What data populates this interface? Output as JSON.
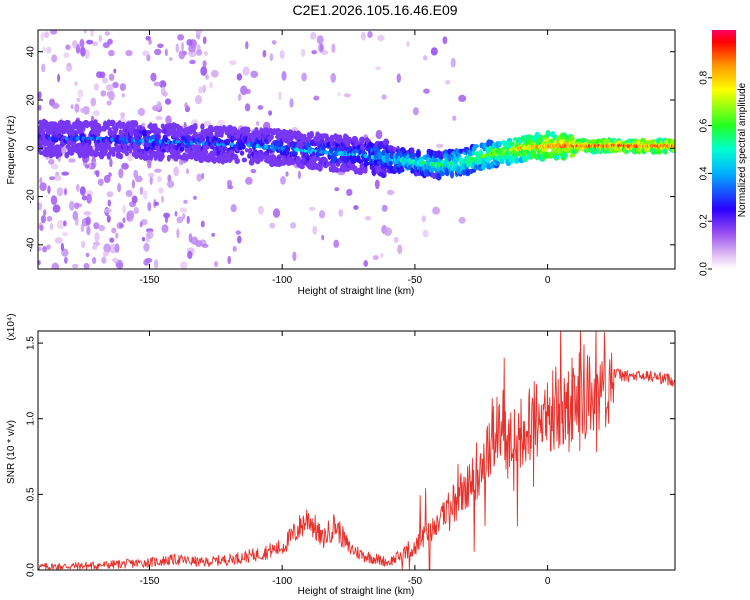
{
  "title": "C2E1.2026.105.16.46.E09",
  "chart_data": [
    {
      "type": "heatmap",
      "title": "C2E1.2026.105.16.46.E09",
      "xlabel": "Height of straight line (km)",
      "ylabel": "Frequency (Hz)",
      "xlim": [
        -192,
        48
      ],
      "ylim": [
        -50,
        49
      ],
      "xticks": [
        "-150",
        "-100",
        "-50",
        "0"
      ],
      "yticks": [
        "40",
        "20",
        "0",
        "-20",
        "-40"
      ],
      "colorbar_label": "Normalized spectral amplitude",
      "colorbar_ticks": [
        "0.0",
        "0.2",
        "0.4",
        "0.6",
        "0.8"
      ],
      "colorbar_range": [
        0,
        1
      ],
      "ridge": {
        "x": [
          -190,
          -170,
          -150,
          -130,
          -110,
          -90,
          -70,
          -55,
          -40,
          -30,
          -20,
          -10,
          0,
          10,
          20,
          30,
          48
        ],
        "freq": [
          4,
          4,
          3,
          2,
          1,
          -1,
          -3,
          -5,
          -7,
          -5,
          -2,
          0,
          1,
          1,
          1,
          1,
          1
        ],
        "amplitude": [
          0.2,
          0.25,
          0.3,
          0.28,
          0.3,
          0.32,
          0.35,
          0.45,
          0.5,
          0.55,
          0.6,
          0.7,
          0.75,
          0.8,
          0.8,
          0.8,
          0.8
        ]
      }
    },
    {
      "type": "line",
      "xlabel": "Height of straight line (km)",
      "ylabel": "SNR (10 * v/v)",
      "y_multiplier": "(x10⁴)",
      "xlim": [
        -192,
        48
      ],
      "ylim": [
        0,
        1.58
      ],
      "xticks": [
        "-150",
        "-100",
        "-50",
        "0"
      ],
      "yticks": [
        "0.0",
        "0.5",
        "1.0",
        "1.5"
      ],
      "color": "#e8302a",
      "series": [
        {
          "name": "SNR",
          "x": [
            -192,
            -170,
            -150,
            -140,
            -130,
            -120,
            -110,
            -100,
            -95,
            -90,
            -85,
            -80,
            -75,
            -70,
            -60,
            -50,
            -45,
            -40,
            -35,
            -30,
            -25,
            -20,
            -17,
            -15,
            -12,
            -10,
            -5,
            0,
            5,
            8,
            10,
            15,
            20,
            25,
            30,
            40,
            48
          ],
          "y": [
            0.02,
            0.03,
            0.05,
            0.07,
            0.05,
            0.07,
            0.1,
            0.15,
            0.25,
            0.35,
            0.2,
            0.3,
            0.15,
            0.1,
            0.05,
            0.15,
            0.25,
            0.35,
            0.45,
            0.55,
            0.7,
            0.9,
            0.95,
            0.8,
            0.85,
            0.9,
            1.0,
            1.05,
            1.1,
            1.05,
            1.2,
            1.15,
            1.25,
            1.3,
            1.28,
            1.28,
            1.25
          ]
        }
      ]
    }
  ]
}
